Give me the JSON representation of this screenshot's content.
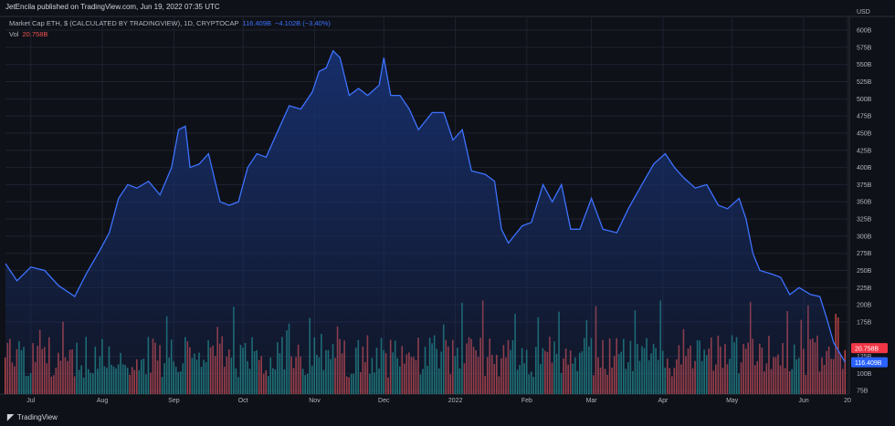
{
  "header": {
    "publisher_line": "JetEncila published on TradingView.com, Jun 19, 2022 07:35 UTC"
  },
  "legend": {
    "symbol": "Market Cap ETH, $ (CALCULATED BY TRADINGVIEW), 1D, CRYPTOCAP",
    "last_value": "116.409B",
    "change": "−4.102B (−3.40%)",
    "volume_label": "Vol",
    "volume_value": "20.758B"
  },
  "footer": {
    "brand": "TradingView",
    "logo": "tradingview-logo"
  },
  "colors": {
    "background": "#0f1118",
    "line": "#3d72ff",
    "area_top": "#17306e",
    "volume_up": "#26a69a",
    "volume_down": "#ef5350",
    "grid": "#1f2230",
    "price_tag_bg": "#2962ff",
    "volume_tag_bg": "#f23645"
  },
  "chart_data": {
    "type": "area",
    "title": "Market Cap ETH, $ (CALCULATED BY TRADINGVIEW), 1D, CRYPTOCAP",
    "currency_label": "USD",
    "ylabel": "",
    "xlabel": "",
    "ylim": [
      70,
      620
    ],
    "y_unit": "B",
    "yticks": [
      600,
      575,
      550,
      525,
      500,
      475,
      450,
      425,
      400,
      375,
      350,
      325,
      300,
      275,
      250,
      225,
      200,
      175,
      125,
      100,
      75
    ],
    "ytick_labels": [
      "600B",
      "575B",
      "550B",
      "525B",
      "500B",
      "475B",
      "450B",
      "425B",
      "400B",
      "375B",
      "350B",
      "325B",
      "300B",
      "275B",
      "250B",
      "225B",
      "200B",
      "175B",
      "125B",
      "100B",
      "75B"
    ],
    "xlim": [
      "2021-06-20",
      "2022-06-20"
    ],
    "xticks": [
      {
        "date": "2021-07-01",
        "label": "Jul"
      },
      {
        "date": "2021-08-01",
        "label": "Aug"
      },
      {
        "date": "2021-09-01",
        "label": "Sep"
      },
      {
        "date": "2021-10-01",
        "label": "Oct"
      },
      {
        "date": "2021-11-01",
        "label": "Nov"
      },
      {
        "date": "2021-12-01",
        "label": "Dec"
      },
      {
        "date": "2022-01-01",
        "label": "2022"
      },
      {
        "date": "2022-02-01",
        "label": "Feb"
      },
      {
        "date": "2022-03-01",
        "label": "Mar"
      },
      {
        "date": "2022-04-01",
        "label": "Apr"
      },
      {
        "date": "2022-05-01",
        "label": "May"
      },
      {
        "date": "2022-06-01",
        "label": "Jun"
      },
      {
        "date": "2022-06-20",
        "label": "20"
      }
    ],
    "grid": true,
    "series": [
      {
        "name": "Market Cap ETH",
        "points": [
          [
            "2021-06-20",
            260
          ],
          [
            "2021-06-25",
            235
          ],
          [
            "2021-07-01",
            255
          ],
          [
            "2021-07-07",
            250
          ],
          [
            "2021-07-13",
            228
          ],
          [
            "2021-07-20",
            212
          ],
          [
            "2021-07-25",
            245
          ],
          [
            "2021-07-31",
            280
          ],
          [
            "2021-08-04",
            305
          ],
          [
            "2021-08-08",
            355
          ],
          [
            "2021-08-12",
            375
          ],
          [
            "2021-08-16",
            370
          ],
          [
            "2021-08-21",
            380
          ],
          [
            "2021-08-26",
            360
          ],
          [
            "2021-08-31",
            400
          ],
          [
            "2021-09-03",
            455
          ],
          [
            "2021-09-06",
            460
          ],
          [
            "2021-09-08",
            400
          ],
          [
            "2021-09-12",
            405
          ],
          [
            "2021-09-16",
            420
          ],
          [
            "2021-09-21",
            350
          ],
          [
            "2021-09-25",
            345
          ],
          [
            "2021-09-29",
            350
          ],
          [
            "2021-10-03",
            400
          ],
          [
            "2021-10-07",
            420
          ],
          [
            "2021-10-11",
            415
          ],
          [
            "2021-10-15",
            445
          ],
          [
            "2021-10-21",
            490
          ],
          [
            "2021-10-26",
            485
          ],
          [
            "2021-10-31",
            510
          ],
          [
            "2021-11-03",
            540
          ],
          [
            "2021-11-06",
            545
          ],
          [
            "2021-11-09",
            570
          ],
          [
            "2021-11-12",
            560
          ],
          [
            "2021-11-16",
            505
          ],
          [
            "2021-11-20",
            515
          ],
          [
            "2021-11-24",
            505
          ],
          [
            "2021-11-29",
            520
          ],
          [
            "2021-12-01",
            560
          ],
          [
            "2021-12-04",
            505
          ],
          [
            "2021-12-08",
            505
          ],
          [
            "2021-12-12",
            485
          ],
          [
            "2021-12-16",
            455
          ],
          [
            "2021-12-22",
            480
          ],
          [
            "2021-12-27",
            480
          ],
          [
            "2021-12-31",
            440
          ],
          [
            "2022-01-04",
            455
          ],
          [
            "2022-01-08",
            395
          ],
          [
            "2022-01-14",
            390
          ],
          [
            "2022-01-18",
            380
          ],
          [
            "2022-01-21",
            310
          ],
          [
            "2022-01-24",
            290
          ],
          [
            "2022-01-30",
            315
          ],
          [
            "2022-02-03",
            320
          ],
          [
            "2022-02-08",
            375
          ],
          [
            "2022-02-12",
            350
          ],
          [
            "2022-02-16",
            375
          ],
          [
            "2022-02-20",
            310
          ],
          [
            "2022-02-24",
            310
          ],
          [
            "2022-03-01",
            355
          ],
          [
            "2022-03-06",
            310
          ],
          [
            "2022-03-12",
            305
          ],
          [
            "2022-03-17",
            340
          ],
          [
            "2022-03-22",
            370
          ],
          [
            "2022-03-28",
            405
          ],
          [
            "2022-04-02",
            420
          ],
          [
            "2022-04-06",
            400
          ],
          [
            "2022-04-10",
            385
          ],
          [
            "2022-04-15",
            370
          ],
          [
            "2022-04-20",
            375
          ],
          [
            "2022-04-25",
            345
          ],
          [
            "2022-04-29",
            340
          ],
          [
            "2022-05-04",
            355
          ],
          [
            "2022-05-07",
            325
          ],
          [
            "2022-05-10",
            275
          ],
          [
            "2022-05-13",
            250
          ],
          [
            "2022-05-18",
            245
          ],
          [
            "2022-05-22",
            240
          ],
          [
            "2022-05-26",
            215
          ],
          [
            "2022-05-30",
            225
          ],
          [
            "2022-06-04",
            215
          ],
          [
            "2022-06-08",
            212
          ],
          [
            "2022-06-11",
            180
          ],
          [
            "2022-06-14",
            145
          ],
          [
            "2022-06-18",
            122
          ],
          [
            "2022-06-19",
            116.409
          ]
        ]
      },
      {
        "name": "Vol",
        "volume_range": [
          0,
          40
        ],
        "bars_note": "daily volume bars colored by day direction",
        "last": 20.758
      }
    ],
    "price_tags": [
      {
        "label": "20.758B",
        "value": 137
      },
      {
        "label": "116.409B",
        "value": 116.409
      }
    ]
  }
}
